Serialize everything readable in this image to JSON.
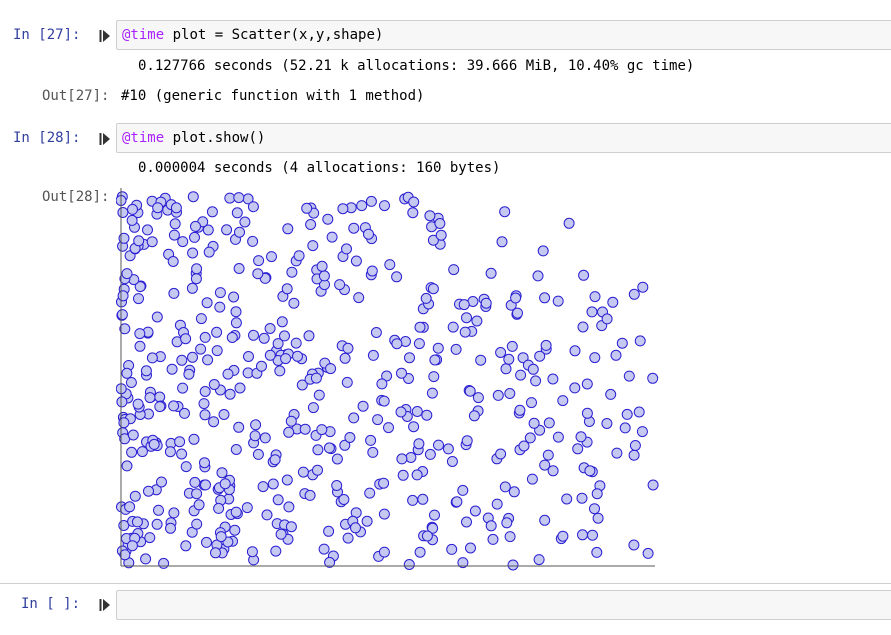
{
  "cells": [
    {
      "prompt": "In [27]:",
      "code_macro": "@time",
      "code_rest": " plot = Scatter(x,y,shape)",
      "stream": "0.127766 seconds (52.21 k allocations: 39.666 MiB, 10.40% gc time)",
      "out_prompt": "Out[27]:",
      "out_text": "#10 (generic function with 1 method)"
    },
    {
      "prompt": "In [28]:",
      "code_macro": "@time",
      "code_rest": " plot.show()",
      "stream": "0.000004 seconds (4 allocations: 160 bytes)",
      "out_prompt": "Out[28]:"
    },
    {
      "prompt": "In [ ]:",
      "code": ""
    }
  ],
  "icons": {
    "run": "run-cell-icon"
  },
  "colors": {
    "prompt_in": "#303f9f",
    "marker_fill": "#c5c9f2",
    "marker_stroke": "#2b1fd1",
    "axis": "#555555"
  },
  "chart_data": {
    "type": "scatter",
    "marker": "circle",
    "grid": false,
    "xlim": [
      0,
      1
    ],
    "ylim": [
      0,
      1
    ],
    "n_points": 620
  }
}
